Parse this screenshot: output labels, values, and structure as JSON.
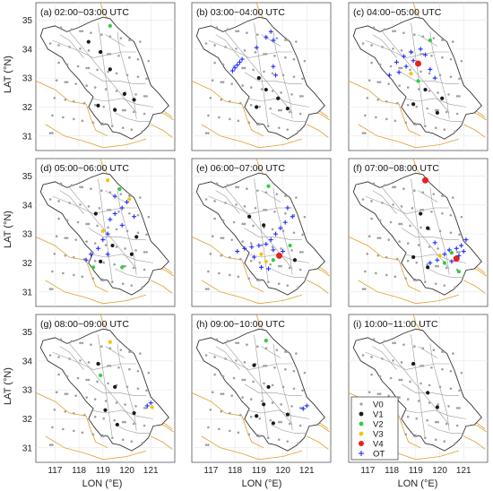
{
  "figure": {
    "ylabel": "LAT (°N)",
    "xlabel": "LON (°E)",
    "x_ticks": [
      "117",
      "118",
      "119",
      "120",
      "121"
    ],
    "y_ticks": [
      "35",
      "34",
      "33",
      "32",
      "31"
    ]
  },
  "legend": {
    "placement": "bottom-right of panel (i)",
    "entries": [
      {
        "key": "V0",
        "label": "V0",
        "color": "#a0a0a0",
        "marker": "dot-small"
      },
      {
        "key": "V1",
        "label": "V1",
        "color": "#1a1a1a",
        "marker": "dot"
      },
      {
        "key": "V2",
        "label": "V2",
        "color": "#2ecc40",
        "marker": "dot"
      },
      {
        "key": "V3",
        "label": "V3",
        "color": "#f5c400",
        "marker": "dot"
      },
      {
        "key": "V4",
        "label": "V4",
        "color": "#e8201e",
        "marker": "dot-large"
      },
      {
        "key": "OT",
        "label": "OT",
        "color": "#1f2bff",
        "marker": "plus"
      }
    ]
  },
  "colors": {
    "province_border": "#333333",
    "county_border": "#9a9a9a",
    "neighbor_border": "#e0a030",
    "grid": "#e6e6e6"
  },
  "chart_data": [
    {
      "type": "scatter",
      "title": "(a) 02:00~03:00 UTC",
      "xlim": [
        116.2,
        122.0
      ],
      "ylim": [
        30.5,
        35.6
      ],
      "grid": true,
      "points": [
        {
          "cat": "V2",
          "lon": 119.3,
          "lat": 34.8
        },
        {
          "cat": "V1",
          "lon": 118.4,
          "lat": 34.25
        },
        {
          "cat": "V1",
          "lon": 118.9,
          "lat": 33.9
        },
        {
          "cat": "V1",
          "lon": 119.3,
          "lat": 33.3
        },
        {
          "cat": "V1",
          "lon": 119.9,
          "lat": 32.45
        },
        {
          "cat": "V1",
          "lon": 118.8,
          "lat": 32.05
        },
        {
          "cat": "V1",
          "lon": 119.5,
          "lat": 31.9
        },
        {
          "cat": "V1",
          "lon": 120.3,
          "lat": 32.25
        }
      ]
    },
    {
      "type": "scatter",
      "title": "(b) 03:00~04:00 UTC",
      "xlim": [
        116.2,
        122.0
      ],
      "ylim": [
        30.5,
        35.6
      ],
      "grid": true,
      "points": [
        {
          "cat": "OT",
          "lon": 119.5,
          "lat": 34.6
        },
        {
          "cat": "OT",
          "lon": 119.6,
          "lat": 34.3
        },
        {
          "cat": "OT",
          "lon": 119.3,
          "lat": 34.4
        },
        {
          "cat": "OT",
          "lon": 118.9,
          "lat": 34.05
        },
        {
          "cat": "OT",
          "lon": 118.3,
          "lat": 33.65
        },
        {
          "cat": "OT",
          "lon": 118.1,
          "lat": 33.45
        },
        {
          "cat": "OT",
          "lon": 118.0,
          "lat": 33.35
        },
        {
          "cat": "OT",
          "lon": 117.9,
          "lat": 33.25
        },
        {
          "cat": "OT",
          "lon": 118.2,
          "lat": 33.55
        },
        {
          "cat": "OT",
          "lon": 119.6,
          "lat": 33.4
        },
        {
          "cat": "OT",
          "lon": 119.7,
          "lat": 33.1
        },
        {
          "cat": "V1",
          "lon": 119.0,
          "lat": 33.0
        },
        {
          "cat": "V1",
          "lon": 119.3,
          "lat": 32.6
        },
        {
          "cat": "V1",
          "lon": 119.8,
          "lat": 32.3
        },
        {
          "cat": "V1",
          "lon": 118.9,
          "lat": 32.0
        },
        {
          "cat": "V1",
          "lon": 120.2,
          "lat": 31.95
        }
      ]
    },
    {
      "type": "scatter",
      "title": "(c) 04:00~05:00 UTC",
      "xlim": [
        116.2,
        122.0
      ],
      "ylim": [
        30.5,
        35.6
      ],
      "grid": true,
      "points": [
        {
          "cat": "V2",
          "lon": 119.6,
          "lat": 34.3
        },
        {
          "cat": "V4",
          "lon": 119.1,
          "lat": 33.5
        },
        {
          "cat": "V3",
          "lon": 118.8,
          "lat": 33.15
        },
        {
          "cat": "V2",
          "lon": 119.1,
          "lat": 32.9
        },
        {
          "cat": "OT",
          "lon": 119.2,
          "lat": 34.0
        },
        {
          "cat": "OT",
          "lon": 118.8,
          "lat": 33.9
        },
        {
          "cat": "OT",
          "lon": 118.5,
          "lat": 33.75
        },
        {
          "cat": "OT",
          "lon": 118.2,
          "lat": 33.55
        },
        {
          "cat": "OT",
          "lon": 118.6,
          "lat": 33.4
        },
        {
          "cat": "OT",
          "lon": 118.3,
          "lat": 33.2
        },
        {
          "cat": "OT",
          "lon": 117.9,
          "lat": 33.1
        },
        {
          "cat": "OT",
          "lon": 118.9,
          "lat": 33.6
        },
        {
          "cat": "OT",
          "lon": 119.4,
          "lat": 33.8
        },
        {
          "cat": "OT",
          "lon": 119.6,
          "lat": 33.3
        },
        {
          "cat": "OT",
          "lon": 119.8,
          "lat": 33.0
        },
        {
          "cat": "V1",
          "lon": 119.4,
          "lat": 32.6
        },
        {
          "cat": "V1",
          "lon": 118.9,
          "lat": 32.1
        },
        {
          "cat": "V1",
          "lon": 120.1,
          "lat": 32.3
        },
        {
          "cat": "V1",
          "lon": 119.9,
          "lat": 31.8
        }
      ]
    },
    {
      "type": "scatter",
      "title": "(d) 05:00~06:00 UTC",
      "xlim": [
        116.2,
        122.0
      ],
      "ylim": [
        30.5,
        35.6
      ],
      "grid": true,
      "points": [
        {
          "cat": "V3",
          "lon": 119.2,
          "lat": 34.85
        },
        {
          "cat": "V2",
          "lon": 119.7,
          "lat": 34.55
        },
        {
          "cat": "V3",
          "lon": 120.1,
          "lat": 34.2
        },
        {
          "cat": "V2",
          "lon": 118.6,
          "lat": 31.85
        },
        {
          "cat": "V2",
          "lon": 119.8,
          "lat": 31.85
        },
        {
          "cat": "V3",
          "lon": 119.0,
          "lat": 33.1
        },
        {
          "cat": "OT",
          "lon": 119.5,
          "lat": 34.3
        },
        {
          "cat": "OT",
          "lon": 120.0,
          "lat": 34.1
        },
        {
          "cat": "OT",
          "lon": 119.8,
          "lat": 33.9
        },
        {
          "cat": "OT",
          "lon": 119.5,
          "lat": 33.7
        },
        {
          "cat": "OT",
          "lon": 119.3,
          "lat": 33.5
        },
        {
          "cat": "OT",
          "lon": 119.8,
          "lat": 33.3
        },
        {
          "cat": "OT",
          "lon": 119.2,
          "lat": 33.0
        },
        {
          "cat": "OT",
          "lon": 119.0,
          "lat": 32.8
        },
        {
          "cat": "OT",
          "lon": 118.8,
          "lat": 32.5
        },
        {
          "cat": "OT",
          "lon": 118.5,
          "lat": 32.3
        },
        {
          "cat": "OT",
          "lon": 118.3,
          "lat": 32.1
        },
        {
          "cat": "OT",
          "lon": 119.2,
          "lat": 32.3
        },
        {
          "cat": "OT",
          "lon": 120.3,
          "lat": 33.6
        },
        {
          "cat": "V1",
          "lon": 118.7,
          "lat": 33.7
        },
        {
          "cat": "V1",
          "lon": 119.4,
          "lat": 32.6
        },
        {
          "cat": "V1",
          "lon": 120.2,
          "lat": 32.3
        },
        {
          "cat": "V1",
          "lon": 118.9,
          "lat": 32.05
        },
        {
          "cat": "V1",
          "lon": 120.4,
          "lat": 32.9
        }
      ]
    },
    {
      "type": "scatter",
      "title": "(e) 06:00~07:00 UTC",
      "xlim": [
        116.2,
        122.0
      ],
      "ylim": [
        30.5,
        35.6
      ],
      "grid": true,
      "points": [
        {
          "cat": "V2",
          "lon": 119.4,
          "lat": 34.65
        },
        {
          "cat": "V2",
          "lon": 120.3,
          "lat": 32.6
        },
        {
          "cat": "V3",
          "lon": 119.3,
          "lat": 32.05
        },
        {
          "cat": "V4",
          "lon": 119.85,
          "lat": 32.25
        },
        {
          "cat": "V2",
          "lon": 119.6,
          "lat": 32.1
        },
        {
          "cat": "V3",
          "lon": 119.1,
          "lat": 32.3
        },
        {
          "cat": "OT",
          "lon": 120.2,
          "lat": 33.9
        },
        {
          "cat": "OT",
          "lon": 120.4,
          "lat": 33.6
        },
        {
          "cat": "OT",
          "lon": 120.1,
          "lat": 33.4
        },
        {
          "cat": "OT",
          "lon": 119.9,
          "lat": 33.2
        },
        {
          "cat": "OT",
          "lon": 119.7,
          "lat": 33.0
        },
        {
          "cat": "OT",
          "lon": 119.5,
          "lat": 32.8
        },
        {
          "cat": "OT",
          "lon": 119.3,
          "lat": 32.65
        },
        {
          "cat": "OT",
          "lon": 119.0,
          "lat": 32.6
        },
        {
          "cat": "OT",
          "lon": 118.7,
          "lat": 32.55
        },
        {
          "cat": "OT",
          "lon": 118.4,
          "lat": 32.5
        },
        {
          "cat": "OT",
          "lon": 118.1,
          "lat": 32.4
        },
        {
          "cat": "OT",
          "lon": 118.8,
          "lat": 32.2
        },
        {
          "cat": "OT",
          "lon": 119.1,
          "lat": 31.85
        },
        {
          "cat": "OT",
          "lon": 119.4,
          "lat": 31.8
        },
        {
          "cat": "OT",
          "lon": 120.0,
          "lat": 32.4
        },
        {
          "cat": "OT",
          "lon": 119.6,
          "lat": 32.45
        },
        {
          "cat": "V1",
          "lon": 118.6,
          "lat": 33.6
        },
        {
          "cat": "V1",
          "lon": 119.2,
          "lat": 33.3
        },
        {
          "cat": "V1",
          "lon": 120.5,
          "lat": 32.1
        }
      ]
    },
    {
      "type": "scatter",
      "title": "(f) 07:00~08:00 UTC",
      "xlim": [
        116.2,
        122.0
      ],
      "ylim": [
        30.5,
        35.6
      ],
      "grid": true,
      "points": [
        {
          "cat": "V4",
          "lon": 119.4,
          "lat": 34.85
        },
        {
          "cat": "V4",
          "lon": 120.7,
          "lat": 32.15
        },
        {
          "cat": "V2",
          "lon": 120.8,
          "lat": 31.7
        },
        {
          "cat": "V2",
          "lon": 120.2,
          "lat": 32.0
        },
        {
          "cat": "V2",
          "lon": 120.5,
          "lat": 32.35
        },
        {
          "cat": "V3",
          "lon": 120.0,
          "lat": 32.25
        },
        {
          "cat": "OT",
          "lon": 121.1,
          "lat": 32.8
        },
        {
          "cat": "OT",
          "lon": 120.9,
          "lat": 32.6
        },
        {
          "cat": "OT",
          "lon": 120.7,
          "lat": 32.5
        },
        {
          "cat": "OT",
          "lon": 120.4,
          "lat": 32.45
        },
        {
          "cat": "OT",
          "lon": 120.2,
          "lat": 32.3
        },
        {
          "cat": "OT",
          "lon": 119.9,
          "lat": 32.1
        },
        {
          "cat": "OT",
          "lon": 119.6,
          "lat": 32.0
        },
        {
          "cat": "OT",
          "lon": 120.8,
          "lat": 32.25
        },
        {
          "cat": "OT",
          "lon": 121.0,
          "lat": 32.4
        },
        {
          "cat": "OT",
          "lon": 120.5,
          "lat": 32.05
        },
        {
          "cat": "OT",
          "lon": 119.8,
          "lat": 32.7
        },
        {
          "cat": "V1",
          "lon": 119.2,
          "lat": 33.7
        },
        {
          "cat": "V1",
          "lon": 119.5,
          "lat": 33.2
        },
        {
          "cat": "V1",
          "lon": 118.9,
          "lat": 32.2
        },
        {
          "cat": "V1",
          "lon": 119.5,
          "lat": 31.85
        }
      ]
    },
    {
      "type": "scatter",
      "title": "(g) 08:00~09:00 UTC",
      "xlim": [
        116.2,
        122.0
      ],
      "ylim": [
        30.5,
        35.6
      ],
      "grid": true,
      "points": [
        {
          "cat": "V3",
          "lon": 119.3,
          "lat": 34.65
        },
        {
          "cat": "V2",
          "lon": 118.9,
          "lat": 33.5
        },
        {
          "cat": "V3",
          "lon": 121.05,
          "lat": 32.4
        },
        {
          "cat": "OT",
          "lon": 121.0,
          "lat": 32.55
        },
        {
          "cat": "OT",
          "lon": 120.85,
          "lat": 32.45
        },
        {
          "cat": "V1",
          "lon": 118.8,
          "lat": 33.9
        },
        {
          "cat": "V1",
          "lon": 119.5,
          "lat": 33.1
        },
        {
          "cat": "V1",
          "lon": 119.1,
          "lat": 32.3
        },
        {
          "cat": "V1",
          "lon": 120.3,
          "lat": 32.2
        },
        {
          "cat": "V1",
          "lon": 119.6,
          "lat": 31.8
        }
      ]
    },
    {
      "type": "scatter",
      "title": "(h) 09:00~10:00 UTC",
      "xlim": [
        116.2,
        122.0
      ],
      "ylim": [
        30.5,
        35.6
      ],
      "grid": true,
      "points": [
        {
          "cat": "V2",
          "lon": 119.3,
          "lat": 34.7
        },
        {
          "cat": "OT",
          "lon": 121.0,
          "lat": 32.45
        },
        {
          "cat": "OT",
          "lon": 120.85,
          "lat": 32.35
        },
        {
          "cat": "V1",
          "lon": 118.8,
          "lat": 33.85
        },
        {
          "cat": "V1",
          "lon": 119.4,
          "lat": 33.1
        },
        {
          "cat": "V1",
          "lon": 119.2,
          "lat": 32.5
        },
        {
          "cat": "V1",
          "lon": 118.9,
          "lat": 32.1
        },
        {
          "cat": "V1",
          "lon": 120.2,
          "lat": 32.15
        },
        {
          "cat": "V1",
          "lon": 119.6,
          "lat": 31.85
        }
      ]
    },
    {
      "type": "scatter",
      "title": "(i) 10:00~11:00 UTC",
      "xlim": [
        116.2,
        122.0
      ],
      "ylim": [
        30.5,
        35.6
      ],
      "grid": true,
      "points": [
        {
          "cat": "V1",
          "lon": 118.9,
          "lat": 33.9
        },
        {
          "cat": "V1",
          "lon": 119.5,
          "lat": 32.9
        },
        {
          "cat": "V1",
          "lon": 119.9,
          "lat": 32.4
        }
      ]
    }
  ]
}
